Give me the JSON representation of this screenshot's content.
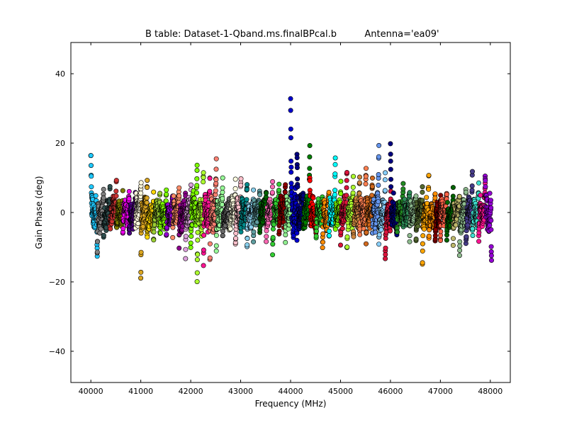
{
  "chart_data": {
    "type": "scatter",
    "title": "B table: Dataset-1-Qband.ms.finalBPcal.b",
    "subtitle": "Antenna='ea09'",
    "xlabel": "Frequency (MHz)",
    "ylabel": "Gain Phase (deg)",
    "xlim": [
      39600,
      48400
    ],
    "ylim": [
      -49,
      49
    ],
    "xticks": [
      40000,
      41000,
      42000,
      43000,
      44000,
      45000,
      46000,
      47000,
      48000
    ],
    "yticks": [
      40,
      20,
      0,
      -20,
      -40
    ],
    "ytick_labels": [
      "40",
      "20",
      "0",
      "−20",
      "−40"
    ],
    "grid": false,
    "marker": "circle",
    "marker_edge": "#000000",
    "spw_width_mhz": 128,
    "spectral_windows": [
      {
        "start": 40000,
        "color": "#1ec8ff",
        "center": 0,
        "spread": 6,
        "edge_low": 17,
        "edge_high": -12
      },
      {
        "start": 40128,
        "color": "#808080",
        "center": -1,
        "spread": 5,
        "edge_low": -13,
        "edge_high": 7
      },
      {
        "start": 40256,
        "color": "#2f4f4f",
        "center": -1,
        "spread": 5,
        "edge_low": -6,
        "edge_high": 7
      },
      {
        "start": 40384,
        "color": "#cd3333",
        "center": 1,
        "spread": 5,
        "edge_low": -5,
        "edge_high": 9
      },
      {
        "start": 40512,
        "color": "#808000",
        "center": 0,
        "spread": 4,
        "edge_low": -5,
        "edge_high": 5
      },
      {
        "start": 40640,
        "color": "#ee00ee",
        "center": 0,
        "spread": 4,
        "edge_low": -5,
        "edge_high": 6
      },
      {
        "start": 40768,
        "color": "#4b0082",
        "center": -1,
        "spread": 4,
        "edge_low": -6,
        "edge_high": 5
      },
      {
        "start": 40896,
        "color": "#fff8dc",
        "center": 1,
        "spread": 5,
        "edge_low": -4,
        "edge_high": 9
      },
      {
        "start": 41000,
        "color": "#daa520",
        "center": 0,
        "spread": 5,
        "edge_low": -19,
        "edge_high": 10
      },
      {
        "start": 41128,
        "color": "#ffd700",
        "center": -1,
        "spread": 4,
        "edge_low": -7,
        "edge_high": 5
      },
      {
        "start": 41256,
        "color": "#9acd32",
        "center": 0,
        "spread": 4,
        "edge_low": -7,
        "edge_high": 6
      },
      {
        "start": 41384,
        "color": "#7cfc00",
        "center": -1,
        "spread": 4,
        "edge_low": -5,
        "edge_high": 6
      },
      {
        "start": 41512,
        "color": "#9400d3",
        "center": -1,
        "spread": 4,
        "edge_low": -7,
        "edge_high": 5
      },
      {
        "start": 41640,
        "color": "#ff8c69",
        "center": 0,
        "spread": 5,
        "edge_low": -6,
        "edge_high": 6
      },
      {
        "start": 41768,
        "color": "#8b008b",
        "center": -1,
        "spread": 5,
        "edge_low": -9,
        "edge_high": 5
      },
      {
        "start": 41896,
        "color": "#dda0dd",
        "center": 0,
        "spread": 5,
        "edge_low": -12,
        "edge_high": 8
      },
      {
        "start": 42000,
        "color": "#7cfc00",
        "center": 1,
        "spread": 6,
        "edge_low": -9,
        "edge_high": 14
      },
      {
        "start": 42128,
        "color": "#adff2f",
        "center": -1,
        "spread": 6,
        "edge_low": -19,
        "edge_high": 12
      },
      {
        "start": 42256,
        "color": "#ff1493",
        "center": 0,
        "spread": 6,
        "edge_low": -14,
        "edge_high": 10
      },
      {
        "start": 42384,
        "color": "#fa8072",
        "center": 0,
        "spread": 6,
        "edge_low": -13,
        "edge_high": 14
      },
      {
        "start": 42512,
        "color": "#98fb98",
        "center": 0,
        "spread": 5,
        "edge_low": -11,
        "edge_high": 9
      },
      {
        "start": 42640,
        "color": "#696969",
        "center": -1,
        "spread": 4,
        "edge_low": -8,
        "edge_high": 5
      },
      {
        "start": 42768,
        "color": "#ffffe0",
        "center": 0,
        "spread": 5,
        "edge_low": -6,
        "edge_high": 9
      },
      {
        "start": 42896,
        "color": "#ffc0cb",
        "center": 0,
        "spread": 5,
        "edge_low": -10,
        "edge_high": 10
      },
      {
        "start": 43000,
        "color": "#008b8b",
        "center": 0,
        "spread": 5,
        "edge_low": -5,
        "edge_high": 9
      },
      {
        "start": 43128,
        "color": "#87ceeb",
        "center": -1,
        "spread": 4,
        "edge_low": -9,
        "edge_high": 5
      },
      {
        "start": 43256,
        "color": "#5f9ea0",
        "center": 0,
        "spread": 4,
        "edge_low": -7,
        "edge_high": 6
      },
      {
        "start": 43384,
        "color": "#006400",
        "center": 0,
        "spread": 4,
        "edge_low": -5,
        "edge_high": 7
      },
      {
        "start": 43512,
        "color": "#ff69b4",
        "center": 0,
        "spread": 4,
        "edge_low": -7,
        "edge_high": 8
      },
      {
        "start": 43640,
        "color": "#32cd32",
        "center": 0,
        "spread": 4,
        "edge_low": -11,
        "edge_high": 7
      },
      {
        "start": 43768,
        "color": "#8b0000",
        "center": 0,
        "spread": 5,
        "edge_low": -6,
        "edge_high": 9
      },
      {
        "start": 43896,
        "color": "#90ee90",
        "center": 0,
        "spread": 5,
        "edge_low": -8,
        "edge_high": 6
      },
      {
        "start": 44000,
        "color": "#0000cd",
        "center": 0,
        "spread": 8,
        "edge_low": 32,
        "edge_high": -8
      },
      {
        "start": 44128,
        "color": "#000080",
        "center": 0,
        "spread": 6,
        "edge_low": 18,
        "edge_high": 6
      },
      {
        "start": 44256,
        "color": "#008000",
        "center": 0,
        "spread": 5,
        "edge_low": -6,
        "edge_high": 18
      },
      {
        "start": 44384,
        "color": "#ff0000",
        "center": 0,
        "spread": 5,
        "edge_low": 10,
        "edge_high": -6
      },
      {
        "start": 44512,
        "color": "#32cd32",
        "center": 0,
        "spread": 4,
        "edge_low": -7,
        "edge_high": 5
      },
      {
        "start": 44640,
        "color": "#ff8c00",
        "center": -1,
        "spread": 5,
        "edge_low": -11,
        "edge_high": 5
      },
      {
        "start": 44768,
        "color": "#00ffff",
        "center": 0,
        "spread": 5,
        "edge_low": -8,
        "edge_high": 15
      },
      {
        "start": 44896,
        "color": "#7fff00",
        "center": 0,
        "spread": 4,
        "edge_low": -5,
        "edge_high": 8
      },
      {
        "start": 45000,
        "color": "#dc143c",
        "center": 0,
        "spread": 5,
        "edge_low": -8,
        "edge_high": 12
      },
      {
        "start": 45128,
        "color": "#adff2f",
        "center": 0,
        "spread": 5,
        "edge_low": -11,
        "edge_high": 9
      },
      {
        "start": 45256,
        "color": "#cd853f",
        "center": 0,
        "spread": 5,
        "edge_low": -7,
        "edge_high": 11
      },
      {
        "start": 45384,
        "color": "#ff7f50",
        "center": 0,
        "spread": 5,
        "edge_low": -6,
        "edge_high": 12
      },
      {
        "start": 45512,
        "color": "#d2691e",
        "center": 0,
        "spread": 5,
        "edge_low": -8,
        "edge_high": 10
      },
      {
        "start": 45640,
        "color": "#6495ed",
        "center": 0,
        "spread": 6,
        "edge_low": -6,
        "edge_high": 19
      },
      {
        "start": 45768,
        "color": "#87cefa",
        "center": -1,
        "spread": 5,
        "edge_low": -9,
        "edge_high": 11
      },
      {
        "start": 45896,
        "color": "#dc143c",
        "center": -1,
        "spread": 5,
        "edge_low": -14,
        "edge_high": 6
      },
      {
        "start": 46000,
        "color": "#000080",
        "center": 0,
        "spread": 6,
        "edge_low": 21,
        "edge_high": -5
      },
      {
        "start": 46128,
        "color": "#228b22",
        "center": 0,
        "spread": 4,
        "edge_low": -6,
        "edge_high": 7
      },
      {
        "start": 46256,
        "color": "#2e8b57",
        "center": 0,
        "spread": 4,
        "edge_low": -5,
        "edge_high": 6
      },
      {
        "start": 46384,
        "color": "#8fbc8f",
        "center": 0,
        "spread": 4,
        "edge_low": -7,
        "edge_high": 5
      },
      {
        "start": 46512,
        "color": "#556b2f",
        "center": 0,
        "spread": 4,
        "edge_low": -8,
        "edge_high": 6
      },
      {
        "start": 46640,
        "color": "#ffa500",
        "center": 0,
        "spread": 5,
        "edge_low": -15,
        "edge_high": 12
      },
      {
        "start": 46768,
        "color": "#ff8c00",
        "center": -1,
        "spread": 4,
        "edge_low": -8,
        "edge_high": 6
      },
      {
        "start": 46896,
        "color": "#800000",
        "center": -1,
        "spread": 4,
        "edge_low": -8,
        "edge_high": 5
      },
      {
        "start": 47000,
        "color": "#ff6347",
        "center": 0,
        "spread": 4,
        "edge_low": -8,
        "edge_high": 6
      },
      {
        "start": 47128,
        "color": "#006400",
        "center": -1,
        "spread": 4,
        "edge_low": -9,
        "edge_high": 6
      },
      {
        "start": 47256,
        "color": "#bdb76b",
        "center": 0,
        "spread": 4,
        "edge_low": -8,
        "edge_high": 5
      },
      {
        "start": 47384,
        "color": "#8fbc8f",
        "center": -1,
        "spread": 5,
        "edge_low": -13,
        "edge_high": 7
      },
      {
        "start": 47512,
        "color": "#483d8b",
        "center": 0,
        "spread": 5,
        "edge_low": -9,
        "edge_high": 11
      },
      {
        "start": 47640,
        "color": "#40e0d0",
        "center": 0,
        "spread": 5,
        "edge_low": -6,
        "edge_high": 8
      },
      {
        "start": 47768,
        "color": "#ff1493",
        "center": 0,
        "spread": 5,
        "edge_low": -8,
        "edge_high": 7
      },
      {
        "start": 47896,
        "color": "#9400d3",
        "center": 0,
        "spread": 7,
        "edge_low": 10,
        "edge_high": -15
      }
    ]
  }
}
